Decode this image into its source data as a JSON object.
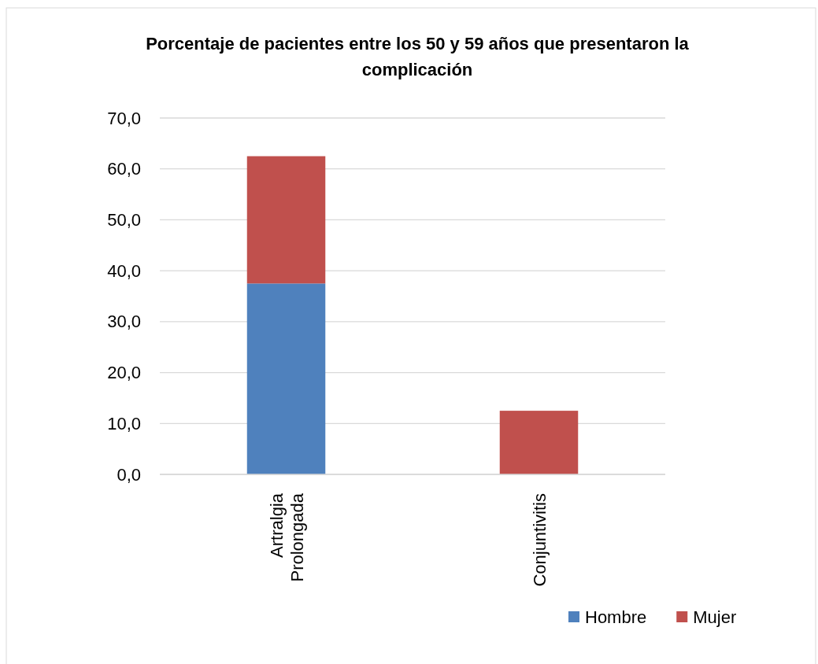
{
  "chart_data": {
    "type": "bar",
    "title": "Porcentaje de pacientes entre los 50 y 59 años que presentaron la complicación",
    "categories": [
      "Artralgia Prolongada",
      "Conjuntivitis"
    ],
    "series": [
      {
        "name": "Hombre",
        "color": "#4f81bd",
        "values": [
          37.5,
          0
        ]
      },
      {
        "name": "Mujer",
        "color": "#c0504d",
        "values": [
          25,
          12.5
        ]
      }
    ],
    "stacked": true,
    "ylim": [
      0,
      70
    ],
    "yticks": [
      {
        "value": 0,
        "label": "0,0"
      },
      {
        "value": 10,
        "label": "10,0"
      },
      {
        "value": 20,
        "label": "20,0"
      },
      {
        "value": 30,
        "label": "30,0"
      },
      {
        "value": 40,
        "label": "40,0"
      },
      {
        "value": 50,
        "label": "50,0"
      },
      {
        "value": 60,
        "label": "60,0"
      },
      {
        "value": 70,
        "label": "70,0"
      }
    ],
    "grid": "y",
    "legend": "bottom right"
  }
}
